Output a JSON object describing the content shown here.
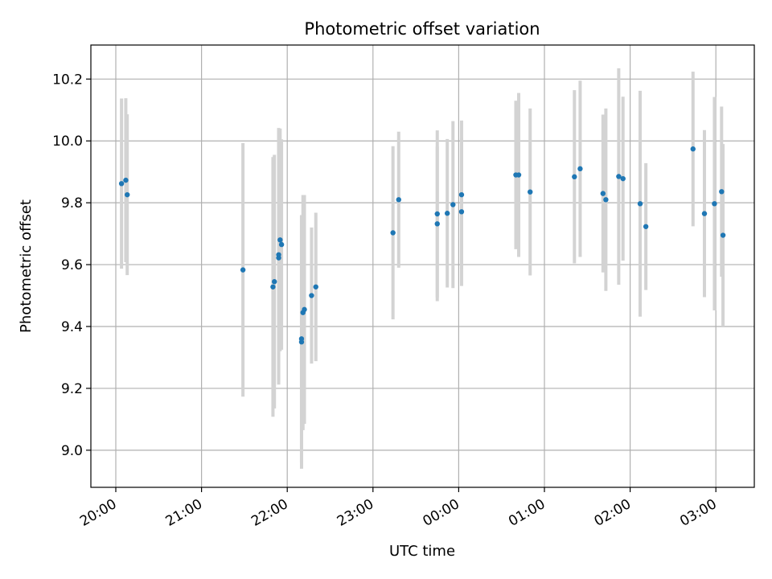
{
  "chart_data": {
    "type": "scatter",
    "title": "Photometric offset variation",
    "xlabel": "UTC time",
    "ylabel": "Photometric offset",
    "x_tick_labels": [
      "20:00",
      "21:00",
      "22:00",
      "23:00",
      "00:00",
      "01:00",
      "02:00",
      "03:00"
    ],
    "y_tick_labels": [
      "9.0",
      "9.2",
      "9.4",
      "9.6",
      "9.8",
      "10.0",
      "10.2"
    ],
    "y_ticks": [
      9.0,
      9.2,
      9.4,
      9.6,
      9.8,
      10.0,
      10.2
    ],
    "ylim": [
      8.88,
      10.31
    ],
    "grid": true,
    "colors": {
      "points": "#1f77b4",
      "errorbars": "#d3d3d3",
      "grid": "#b0b0b0"
    },
    "series": [
      {
        "points": [
          {
            "x": "20:04",
            "y": 9.862,
            "yerr": 0.275
          },
          {
            "x": "20:07",
            "y": 9.873,
            "yerr": 0.265
          },
          {
            "x": "20:08",
            "y": 9.826,
            "yerr": 0.26
          },
          {
            "x": "21:29",
            "y": 9.583,
            "yerr": 0.41
          },
          {
            "x": "21:50",
            "y": 9.528,
            "yerr": 0.42
          },
          {
            "x": "21:51",
            "y": 9.545,
            "yerr": 0.41
          },
          {
            "x": "21:54",
            "y": 9.622,
            "yerr": 0.41
          },
          {
            "x": "21:54",
            "y": 9.632,
            "yerr": 0.41
          },
          {
            "x": "21:55",
            "y": 9.68,
            "yerr": 0.36
          },
          {
            "x": "21:56",
            "y": 9.665,
            "yerr": 0.34
          },
          {
            "x": "22:10",
            "y": 9.35,
            "yerr": 0.41
          },
          {
            "x": "22:10",
            "y": 9.36,
            "yerr": 0.4
          },
          {
            "x": "22:11",
            "y": 9.445,
            "yerr": 0.38
          },
          {
            "x": "22:12",
            "y": 9.455,
            "yerr": 0.37
          },
          {
            "x": "22:17",
            "y": 9.5,
            "yerr": 0.22
          },
          {
            "x": "22:20",
            "y": 9.528,
            "yerr": 0.24
          },
          {
            "x": "23:14",
            "y": 9.703,
            "yerr": 0.28
          },
          {
            "x": "23:18",
            "y": 9.81,
            "yerr": 0.22
          },
          {
            "x": "23:45",
            "y": 9.764,
            "yerr": 0.27
          },
          {
            "x": "23:45",
            "y": 9.732,
            "yerr": 0.25
          },
          {
            "x": "23:52",
            "y": 9.766,
            "yerr": 0.24
          },
          {
            "x": "23:56",
            "y": 9.794,
            "yerr": 0.27
          },
          {
            "x": "00:02",
            "y": 9.826,
            "yerr": 0.24
          },
          {
            "x": "00:02",
            "y": 9.771,
            "yerr": 0.24
          },
          {
            "x": "00:40",
            "y": 9.89,
            "yerr": 0.24
          },
          {
            "x": "00:42",
            "y": 9.89,
            "yerr": 0.265
          },
          {
            "x": "00:50",
            "y": 9.835,
            "yerr": 0.27
          },
          {
            "x": "01:21",
            "y": 9.884,
            "yerr": 0.28
          },
          {
            "x": "01:25",
            "y": 9.91,
            "yerr": 0.285
          },
          {
            "x": "01:41",
            "y": 9.83,
            "yerr": 0.255
          },
          {
            "x": "01:43",
            "y": 9.81,
            "yerr": 0.295
          },
          {
            "x": "01:52",
            "y": 9.885,
            "yerr": 0.35
          },
          {
            "x": "01:55",
            "y": 9.878,
            "yerr": 0.265
          },
          {
            "x": "02:07",
            "y": 9.797,
            "yerr": 0.365
          },
          {
            "x": "02:11",
            "y": 9.723,
            "yerr": 0.205
          },
          {
            "x": "02:44",
            "y": 9.974,
            "yerr": 0.25
          },
          {
            "x": "02:52",
            "y": 9.765,
            "yerr": 0.27
          },
          {
            "x": "02:59",
            "y": 9.797,
            "yerr": 0.345
          },
          {
            "x": "03:04",
            "y": 9.836,
            "yerr": 0.275
          },
          {
            "x": "03:05",
            "y": 9.695,
            "yerr": 0.295
          }
        ]
      }
    ]
  }
}
